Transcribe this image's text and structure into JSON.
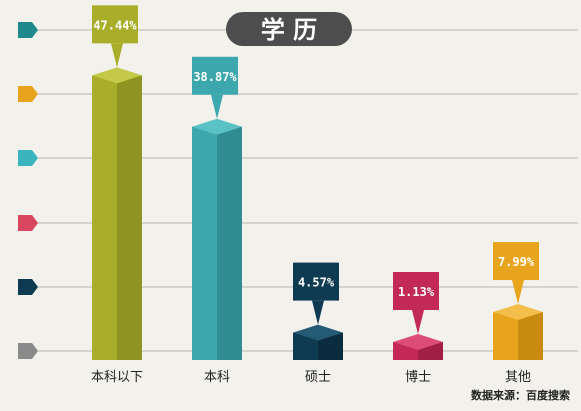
{
  "chart_data": {
    "type": "bar",
    "title": "学 历",
    "categories": [
      "本科以下",
      "本科",
      "硕士",
      "博士",
      "其他"
    ],
    "values": [
      47.44,
      38.87,
      4.57,
      1.13,
      7.99
    ],
    "value_labels": [
      "47.44%",
      "38.87%",
      "4.57%",
      "1.13%",
      "7.99%"
    ],
    "ylim": [
      0,
      50
    ],
    "grid": true,
    "xlabel": "",
    "ylabel": ""
  },
  "colors": {
    "bars": [
      "#a9ae2a",
      "#3ca7ac",
      "#0f3b52",
      "#c22a55",
      "#e9a41d"
    ],
    "bars_dark": [
      "#8e9322",
      "#2f8d91",
      "#0a2c3e",
      "#a11f45",
      "#c98a12"
    ],
    "bars_light": [
      "#c4c94a",
      "#5ac1c5",
      "#245a74",
      "#dc4c76",
      "#f3bf4a"
    ],
    "markers": [
      "#1f8a8c",
      "#e8a31c",
      "#3ab4bd",
      "#d94660",
      "#0e3b52",
      "#8a8a8a"
    ],
    "title_bg": "#4d4d4d",
    "title_fg": "#ffffff",
    "background": "#f2f1ec"
  },
  "source": "数据来源：百度搜索"
}
